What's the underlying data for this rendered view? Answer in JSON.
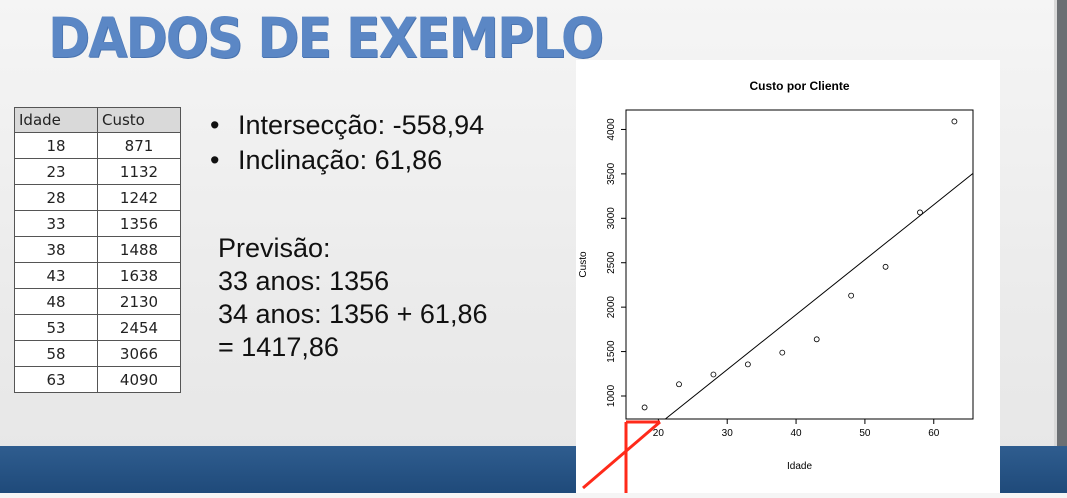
{
  "slide": {
    "title": "DADOS DE EXEMPLO"
  },
  "table": {
    "headers": [
      "Idade",
      "Custo"
    ],
    "rows": [
      [
        "18",
        "871"
      ],
      [
        "23",
        "1132"
      ],
      [
        "28",
        "1242"
      ],
      [
        "33",
        "1356"
      ],
      [
        "38",
        "1488"
      ],
      [
        "43",
        "1638"
      ],
      [
        "48",
        "2130"
      ],
      [
        "53",
        "2454"
      ],
      [
        "58",
        "3066"
      ],
      [
        "63",
        "4090"
      ]
    ]
  },
  "bullets": [
    "Intersecção: -558,94",
    "Inclinação: 61,86"
  ],
  "forecast": {
    "lines": [
      "Previsão:",
      "33 anos: 1356",
      "34 anos: 1356 + 61,86",
      "= 1417,86"
    ]
  },
  "chart_data": {
    "type": "scatter",
    "title": "Custo por Cliente",
    "xlabel": "Idade",
    "ylabel": "Custo",
    "x": [
      18,
      23,
      28,
      33,
      38,
      43,
      48,
      53,
      58,
      63
    ],
    "y": [
      871,
      1132,
      1242,
      1356,
      1488,
      1638,
      2130,
      2454,
      3066,
      4090
    ],
    "xticks": [
      "20",
      "30",
      "40",
      "50",
      "60"
    ],
    "yticks": [
      "1000",
      "1500",
      "2000",
      "2500",
      "3000",
      "3500",
      "4000"
    ],
    "xlim": [
      15.3,
      65.7
    ],
    "ylim": [
      741,
      4219
    ],
    "regression": {
      "intercept": -558.94,
      "slope": 61.86
    },
    "marker": "open-circle",
    "grid": false,
    "annotation_color": "#ff2a1a"
  }
}
